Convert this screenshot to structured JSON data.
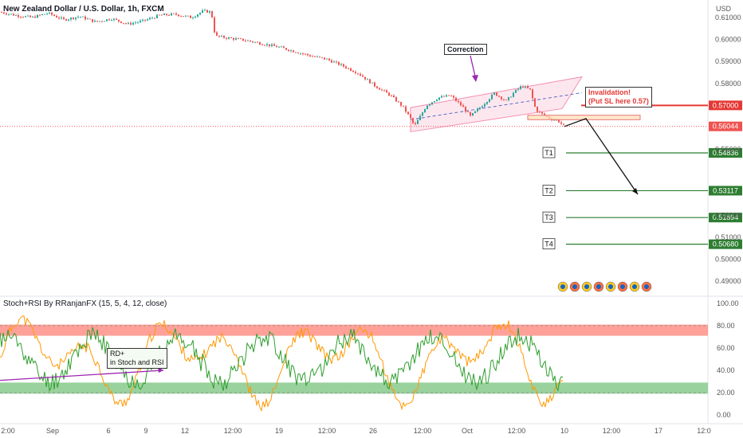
{
  "header": {
    "symbol_title": "New Zealand Dollar / U.S. Dollar, 1h, FXCM",
    "currency": "USD",
    "indicator_title": "Stoch+RSI By RRanjanFX (15, 5, 4, 12, close)"
  },
  "annotations": {
    "correction": "Correction",
    "invalidation_line1": "Invalidation!",
    "invalidation_line2": "(Put SL here 0.57)",
    "rd_line1": "RD+",
    "rd_line2": "in Stoch and RSI"
  },
  "colors": {
    "candle_up": "#26a69a",
    "candle_down": "#ef5350",
    "stop_line": "#e53935",
    "target_line": "#2e7d32",
    "channel_fill": "#f8bbd0",
    "channel_line": "#f48fb1",
    "stoch_line": "#ff9800",
    "rsi_line": "#2e9e2e",
    "overbought_band": "#ff8a80",
    "oversold_band": "#81c784",
    "arrow_purple": "#9c27b0"
  },
  "chart_data": {
    "type": "candlestick",
    "main_axis": {
      "ticks": [
        "0.61000",
        "0.60000",
        "0.59000",
        "0.58000",
        "0.57000",
        "0.56000",
        "0.55000",
        "0.52000",
        "0.51000",
        "0.50000",
        "0.49000"
      ],
      "ylim": [
        0.4865,
        0.615
      ]
    },
    "x_ticks": [
      "2:00",
      "Sep",
      "6",
      "9",
      "12",
      "12:00",
      "19",
      "12:00",
      "26",
      "12:00",
      "Oct",
      "12:00",
      "10",
      "12:00",
      "17",
      "12:0"
    ],
    "price_path": [
      [
        0,
        0.6125
      ],
      [
        20,
        0.611
      ],
      [
        40,
        0.61
      ],
      [
        60,
        0.612
      ],
      [
        80,
        0.609
      ],
      [
        100,
        0.6105
      ],
      [
        120,
        0.608
      ],
      [
        140,
        0.6095
      ],
      [
        160,
        0.607
      ],
      [
        180,
        0.6085
      ],
      [
        200,
        0.611
      ],
      [
        220,
        0.6115
      ],
      [
        240,
        0.61
      ],
      [
        255,
        0.613
      ],
      [
        265,
        0.6125
      ],
      [
        270,
        0.6015
      ],
      [
        290,
        0.6005
      ],
      [
        310,
        0.5995
      ],
      [
        330,
        0.598
      ],
      [
        350,
        0.5965
      ],
      [
        370,
        0.5945
      ],
      [
        390,
        0.5925
      ],
      [
        410,
        0.591
      ],
      [
        430,
        0.588
      ],
      [
        450,
        0.5845
      ],
      [
        470,
        0.579
      ],
      [
        490,
        0.5745
      ],
      [
        505,
        0.5695
      ],
      [
        515,
        0.564
      ],
      [
        520,
        0.5605
      ],
      [
        535,
        0.57
      ],
      [
        550,
        0.5735
      ],
      [
        565,
        0.5745
      ],
      [
        580,
        0.5695
      ],
      [
        590,
        0.565
      ],
      [
        605,
        0.57
      ],
      [
        620,
        0.5755
      ],
      [
        635,
        0.572
      ],
      [
        645,
        0.576
      ],
      [
        655,
        0.579
      ],
      [
        665,
        0.577
      ],
      [
        672,
        0.568
      ],
      [
        680,
        0.566
      ],
      [
        690,
        0.564
      ],
      [
        700,
        0.563
      ],
      [
        708,
        0.5604
      ]
    ],
    "current_price": "0.56044",
    "stop_loss": {
      "label": "0.57000",
      "value": 0.57
    },
    "targets": [
      {
        "name": "T1",
        "label": "0.54836",
        "value": 0.54836
      },
      {
        "name": "T2",
        "label": "0.53117",
        "value": 0.53117
      },
      {
        "name": "T3",
        "label": "0.51894",
        "value": 0.51894
      },
      {
        "name": "T4",
        "label": "0.50680",
        "value": 0.5068
      }
    ],
    "invalidation_zone": {
      "low": 0.5635,
      "high": 0.5655
    },
    "correction_channel": {
      "lower": [
        [
          515,
          0.558
        ],
        [
          705,
          0.5685
        ]
      ],
      "upper": [
        [
          515,
          0.569
        ],
        [
          730,
          0.583
        ]
      ]
    },
    "projection": [
      [
        708,
        0.5604
      ],
      [
        735,
        0.564
      ],
      [
        800,
        0.5295
      ]
    ],
    "indicator": {
      "axis_ticks": [
        "100.00",
        "80.00",
        "60.00",
        "40.00",
        "20.00",
        "0.00"
      ],
      "ylim": [
        -5,
        103
      ],
      "overbought": [
        71,
        81
      ],
      "oversold": [
        19,
        29
      ],
      "rd_arrow": [
        [
          0,
          31
        ],
        [
          205,
          40
        ]
      ]
    }
  }
}
